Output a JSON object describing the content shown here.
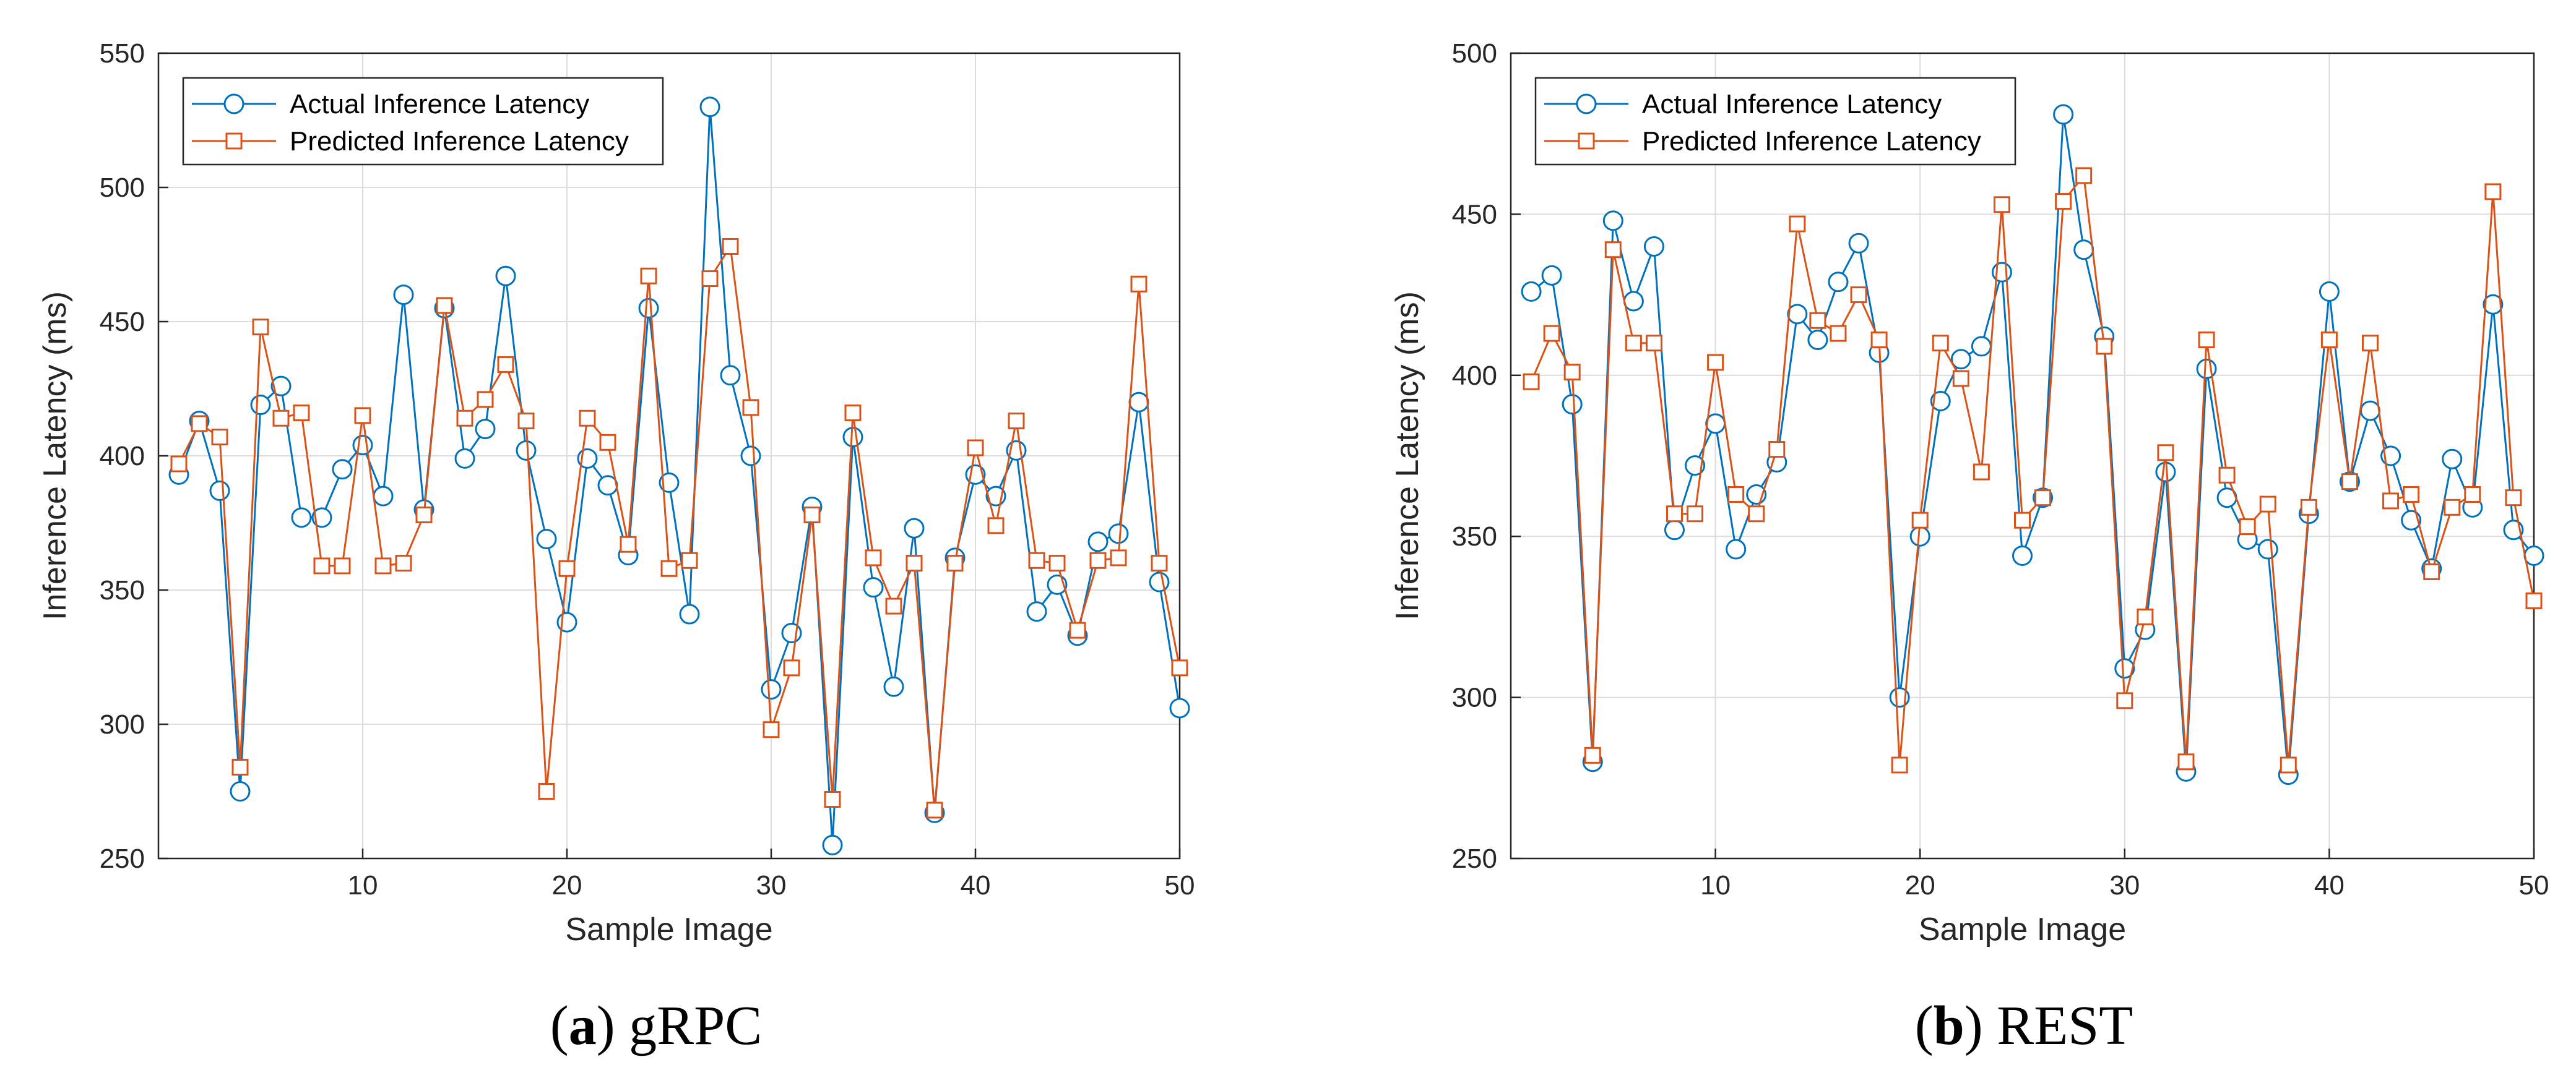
{
  "chart_data": [
    {
      "type": "line",
      "caption_letter": "a",
      "caption_text": "gRPC",
      "xlabel": "Sample Image",
      "ylabel": "Inference Latency (ms)",
      "xlim": [
        0,
        50
      ],
      "ylim": [
        250,
        550
      ],
      "xticks": [
        10,
        20,
        30,
        40,
        50
      ],
      "yticks": [
        250,
        300,
        350,
        400,
        450,
        500,
        550
      ],
      "grid": true,
      "legend_position": "top-left",
      "x": [
        1,
        2,
        3,
        4,
        5,
        6,
        7,
        8,
        9,
        10,
        11,
        12,
        13,
        14,
        15,
        16,
        17,
        18,
        19,
        20,
        21,
        22,
        23,
        24,
        25,
        26,
        27,
        28,
        29,
        30,
        31,
        32,
        33,
        34,
        35,
        36,
        37,
        38,
        39,
        40,
        41,
        42,
        43,
        44,
        45,
        46,
        47,
        48,
        49,
        50
      ],
      "series": [
        {
          "name": "Actual Inference Latency",
          "color": "#0072BD",
          "marker": "circle",
          "values": [
            393,
            413,
            387,
            275,
            419,
            426,
            377,
            377,
            395,
            404,
            385,
            460,
            380,
            455,
            399,
            410,
            467,
            402,
            369,
            338,
            399,
            389,
            363,
            455,
            390,
            341,
            530,
            430,
            400,
            313,
            334,
            381,
            255,
            407,
            351,
            314,
            373,
            267,
            362,
            393,
            385,
            402,
            342,
            352,
            333,
            368,
            371,
            420,
            353,
            306
          ]
        },
        {
          "name": "Predicted Inference Latency",
          "color": "#D95319",
          "marker": "square",
          "values": [
            397,
            412,
            407,
            284,
            448,
            414,
            416,
            359,
            359,
            415,
            359,
            360,
            378,
            456,
            414,
            421,
            434,
            413,
            275,
            358,
            414,
            405,
            367,
            467,
            358,
            361,
            466,
            478,
            418,
            298,
            321,
            378,
            272,
            416,
            362,
            344,
            360,
            268,
            360,
            403,
            374,
            413,
            361,
            360,
            335,
            361,
            362,
            464,
            360,
            321
          ]
        }
      ]
    },
    {
      "type": "line",
      "caption_letter": "b",
      "caption_text": "REST",
      "xlabel": "Sample Image",
      "ylabel": "Inference Latency (ms)",
      "xlim": [
        0,
        50
      ],
      "ylim": [
        250,
        500
      ],
      "xticks": [
        10,
        20,
        30,
        40,
        50
      ],
      "yticks": [
        250,
        300,
        350,
        400,
        450,
        500
      ],
      "grid": true,
      "legend_position": "top-left",
      "x": [
        1,
        2,
        3,
        4,
        5,
        6,
        7,
        8,
        9,
        10,
        11,
        12,
        13,
        14,
        15,
        16,
        17,
        18,
        19,
        20,
        21,
        22,
        23,
        24,
        25,
        26,
        27,
        28,
        29,
        30,
        31,
        32,
        33,
        34,
        35,
        36,
        37,
        38,
        39,
        40,
        41,
        42,
        43,
        44,
        45,
        46,
        47,
        48,
        49,
        50
      ],
      "series": [
        {
          "name": "Actual Inference Latency",
          "color": "#0072BD",
          "marker": "circle",
          "values": [
            426,
            431,
            391,
            280,
            448,
            423,
            440,
            352,
            372,
            385,
            346,
            363,
            373,
            419,
            411,
            429,
            441,
            407,
            300,
            350,
            392,
            405,
            409,
            432,
            344,
            362,
            481,
            439,
            412,
            309,
            321,
            370,
            277,
            402,
            362,
            349,
            346,
            276,
            357,
            426,
            367,
            389,
            375,
            355,
            340,
            374,
            359,
            422,
            352,
            344
          ]
        },
        {
          "name": "Predicted Inference Latency",
          "color": "#D95319",
          "marker": "square",
          "values": [
            398,
            413,
            401,
            282,
            439,
            410,
            410,
            357,
            357,
            404,
            363,
            357,
            377,
            447,
            417,
            413,
            425,
            411,
            279,
            355,
            410,
            399,
            370,
            453,
            355,
            362,
            454,
            462,
            409,
            299,
            325,
            376,
            280,
            411,
            369,
            353,
            360,
            279,
            359,
            411,
            367,
            410,
            361,
            363,
            339,
            359,
            363,
            457,
            362,
            330
          ]
        }
      ]
    }
  ]
}
